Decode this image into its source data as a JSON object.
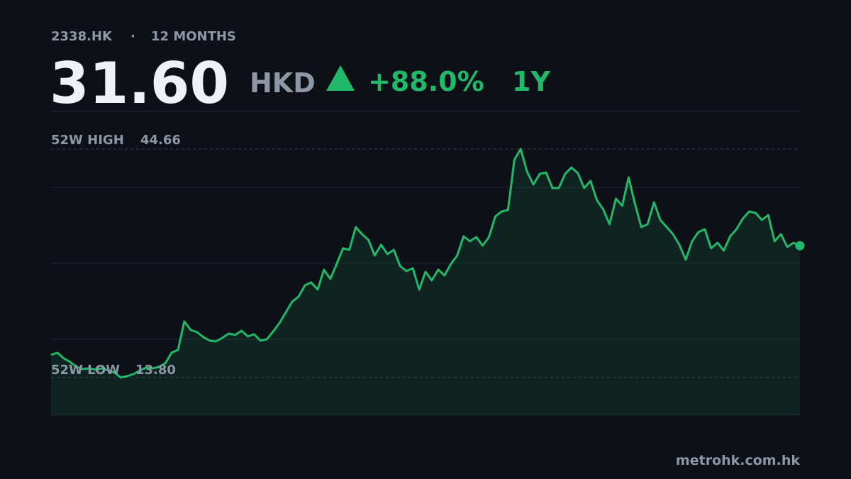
{
  "header": {
    "ticker": "2338.HK",
    "separator": "·",
    "period": "12 MONTHS"
  },
  "quote": {
    "price": "31.60",
    "currency": "HKD",
    "change": "+88.0%",
    "range": "1Y"
  },
  "chart_data": {
    "type": "line",
    "color": "#22b86a",
    "area": true,
    "grid": true,
    "ylim": [
      8.72,
      49.74
    ],
    "yticks": [
      18.97,
      29.23,
      39.48
    ],
    "high": {
      "label": "52W HIGH",
      "value": 44.66
    },
    "low": {
      "label": "52W LOW",
      "value": 13.8,
      "value_label": "13.80"
    },
    "values": [
      16.87,
      17.15,
      16.39,
      15.91,
      15.24,
      14.95,
      15.05,
      14.86,
      15.05,
      14.76,
      14.47,
      13.8,
      13.99,
      14.28,
      14.76,
      15.14,
      15.05,
      15.24,
      15.72,
      17.15,
      17.54,
      21.37,
      20.22,
      19.93,
      19.26,
      18.78,
      18.69,
      19.17,
      19.74,
      19.55,
      20.12,
      19.36,
      19.64,
      18.78,
      18.97,
      20.02,
      21.18,
      22.62,
      24.05,
      24.73,
      26.26,
      26.64,
      25.68,
      28.37,
      27.12,
      29.13,
      31.24,
      31.04,
      34.12,
      33.16,
      32.39,
      30.28,
      31.72,
      30.48,
      31.04,
      28.85,
      28.18,
      28.56,
      25.68,
      28.08,
      26.93,
      28.37,
      27.6,
      29.13,
      30.28,
      32.87,
      32.2,
      32.77,
      31.63,
      32.77,
      35.55,
      36.23,
      36.42,
      43.22,
      44.66,
      41.59,
      39.87,
      41.3,
      41.49,
      39.39,
      39.39,
      41.3,
      42.17,
      41.4,
      39.39,
      40.35,
      37.76,
      36.51,
      34.5,
      37.95,
      36.99,
      40.83,
      37.28,
      34.12,
      34.5,
      37.47,
      35.08,
      34.12,
      33.16,
      31.72,
      29.71,
      32.2,
      33.45,
      33.83,
      31.24,
      32.0,
      30.95,
      32.87,
      33.83,
      35.27,
      36.23,
      36.03,
      35.08,
      35.75,
      32.2,
      33.16,
      31.43,
      32.0,
      31.6
    ]
  },
  "footer": {
    "source": "metrohk.com.hk"
  }
}
